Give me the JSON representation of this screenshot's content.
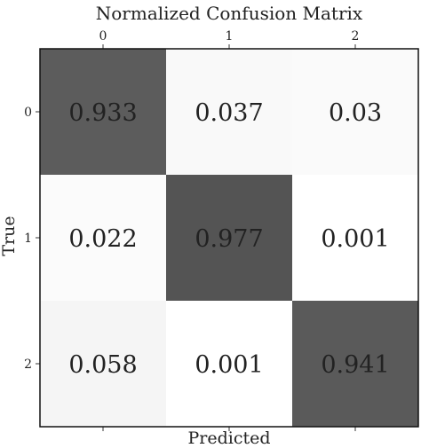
{
  "chart_data": {
    "type": "heatmap",
    "title": "Normalized Confusion Matrix",
    "xlabel": "Predicted",
    "ylabel": "True",
    "x_categories": [
      "0",
      "1",
      "2"
    ],
    "y_categories": [
      "0",
      "1",
      "2"
    ],
    "values": [
      [
        0.933,
        0.037,
        0.03
      ],
      [
        0.022,
        0.977,
        0.001
      ],
      [
        0.058,
        0.001,
        0.941
      ]
    ],
    "value_labels": [
      [
        "0.933",
        "0.037",
        "0.03"
      ],
      [
        "0.022",
        "0.977",
        "0.001"
      ],
      [
        "0.058",
        "0.001",
        "0.941"
      ]
    ],
    "x_tick_position": "top",
    "colormap": "greys",
    "colorbar": false,
    "grid": false
  },
  "colors": {
    "high": "#545454",
    "low": "#ffffff",
    "text_dark": "#222222",
    "text_light": "#ffffff"
  }
}
